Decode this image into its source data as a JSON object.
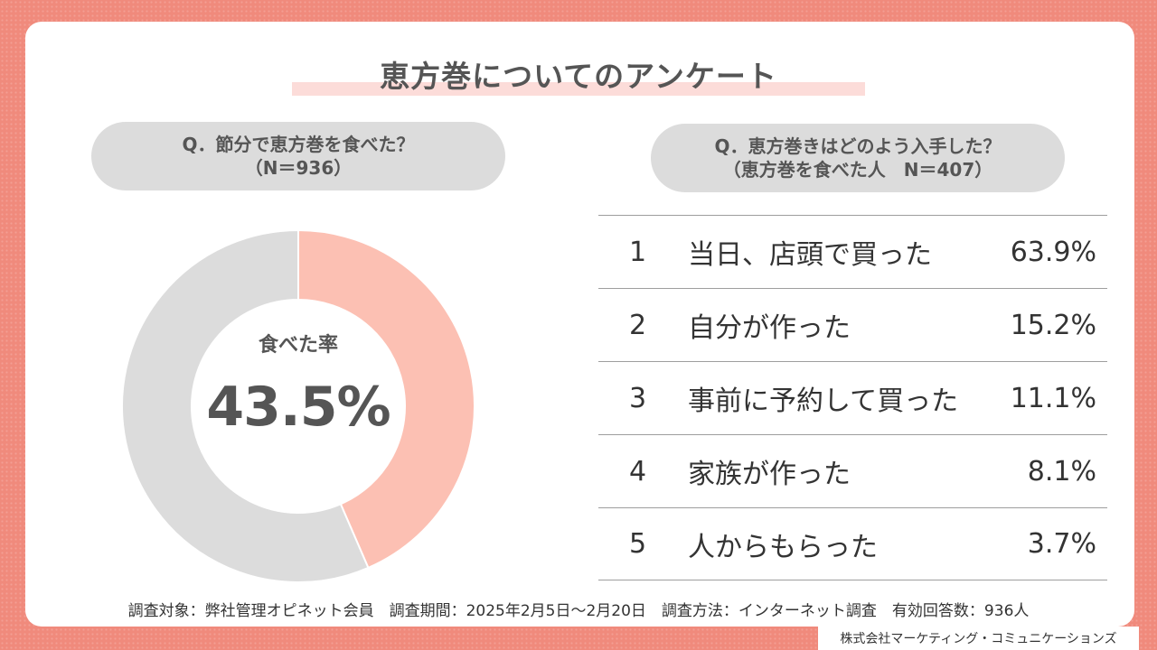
{
  "title": "恵方巻についてのアンケート",
  "left_question": {
    "line1": "Q．節分で恵方巻を食べた？",
    "line2": "（N＝936）"
  },
  "right_question": {
    "line1": "Q．恵方巻きはどのよう入手した？",
    "line2": "（恵方巻を食べた人　N＝407）"
  },
  "donut": {
    "center_label": "食べた率",
    "center_value": "43.5%"
  },
  "colors": {
    "ate": "#fcc0b3",
    "not_ate": "#dcdcdc",
    "background": "#f08a7c"
  },
  "footnote": "調査対象：弊社管理オピネット会員　調査期間：2025年2月5日～2月20日　調査方法：インターネット調査　有効回答数：936人",
  "credit": "株式会社マーケティング・コミュニケーションズ",
  "chart_data": [
    {
      "type": "pie",
      "title": "Q．節分で恵方巻を食べた？",
      "subtitle": "（N＝936）",
      "categories": [
        "食べた",
        ""
      ],
      "values": [
        43.5,
        56.5
      ],
      "center_text": [
        "食べた率",
        "43.5%"
      ]
    },
    {
      "type": "table",
      "title": "Q．恵方巻きはどのよう入手した？",
      "subtitle": "（恵方巻を食べた人　N＝407）",
      "rows": [
        {
          "rank": "1",
          "label": "当日、店頭で買った",
          "percent": 63.9,
          "percent_text": "63.9%"
        },
        {
          "rank": "2",
          "label": "自分が作った",
          "percent": 15.2,
          "percent_text": "15.2%"
        },
        {
          "rank": "3",
          "label": "事前に予約して買った",
          "percent": 11.1,
          "percent_text": "11.1%"
        },
        {
          "rank": "4",
          "label": "家族が作った",
          "percent": 8.1,
          "percent_text": "8.1%"
        },
        {
          "rank": "5",
          "label": "人からもらった",
          "percent": 3.7,
          "percent_text": "3.7%"
        }
      ]
    }
  ]
}
